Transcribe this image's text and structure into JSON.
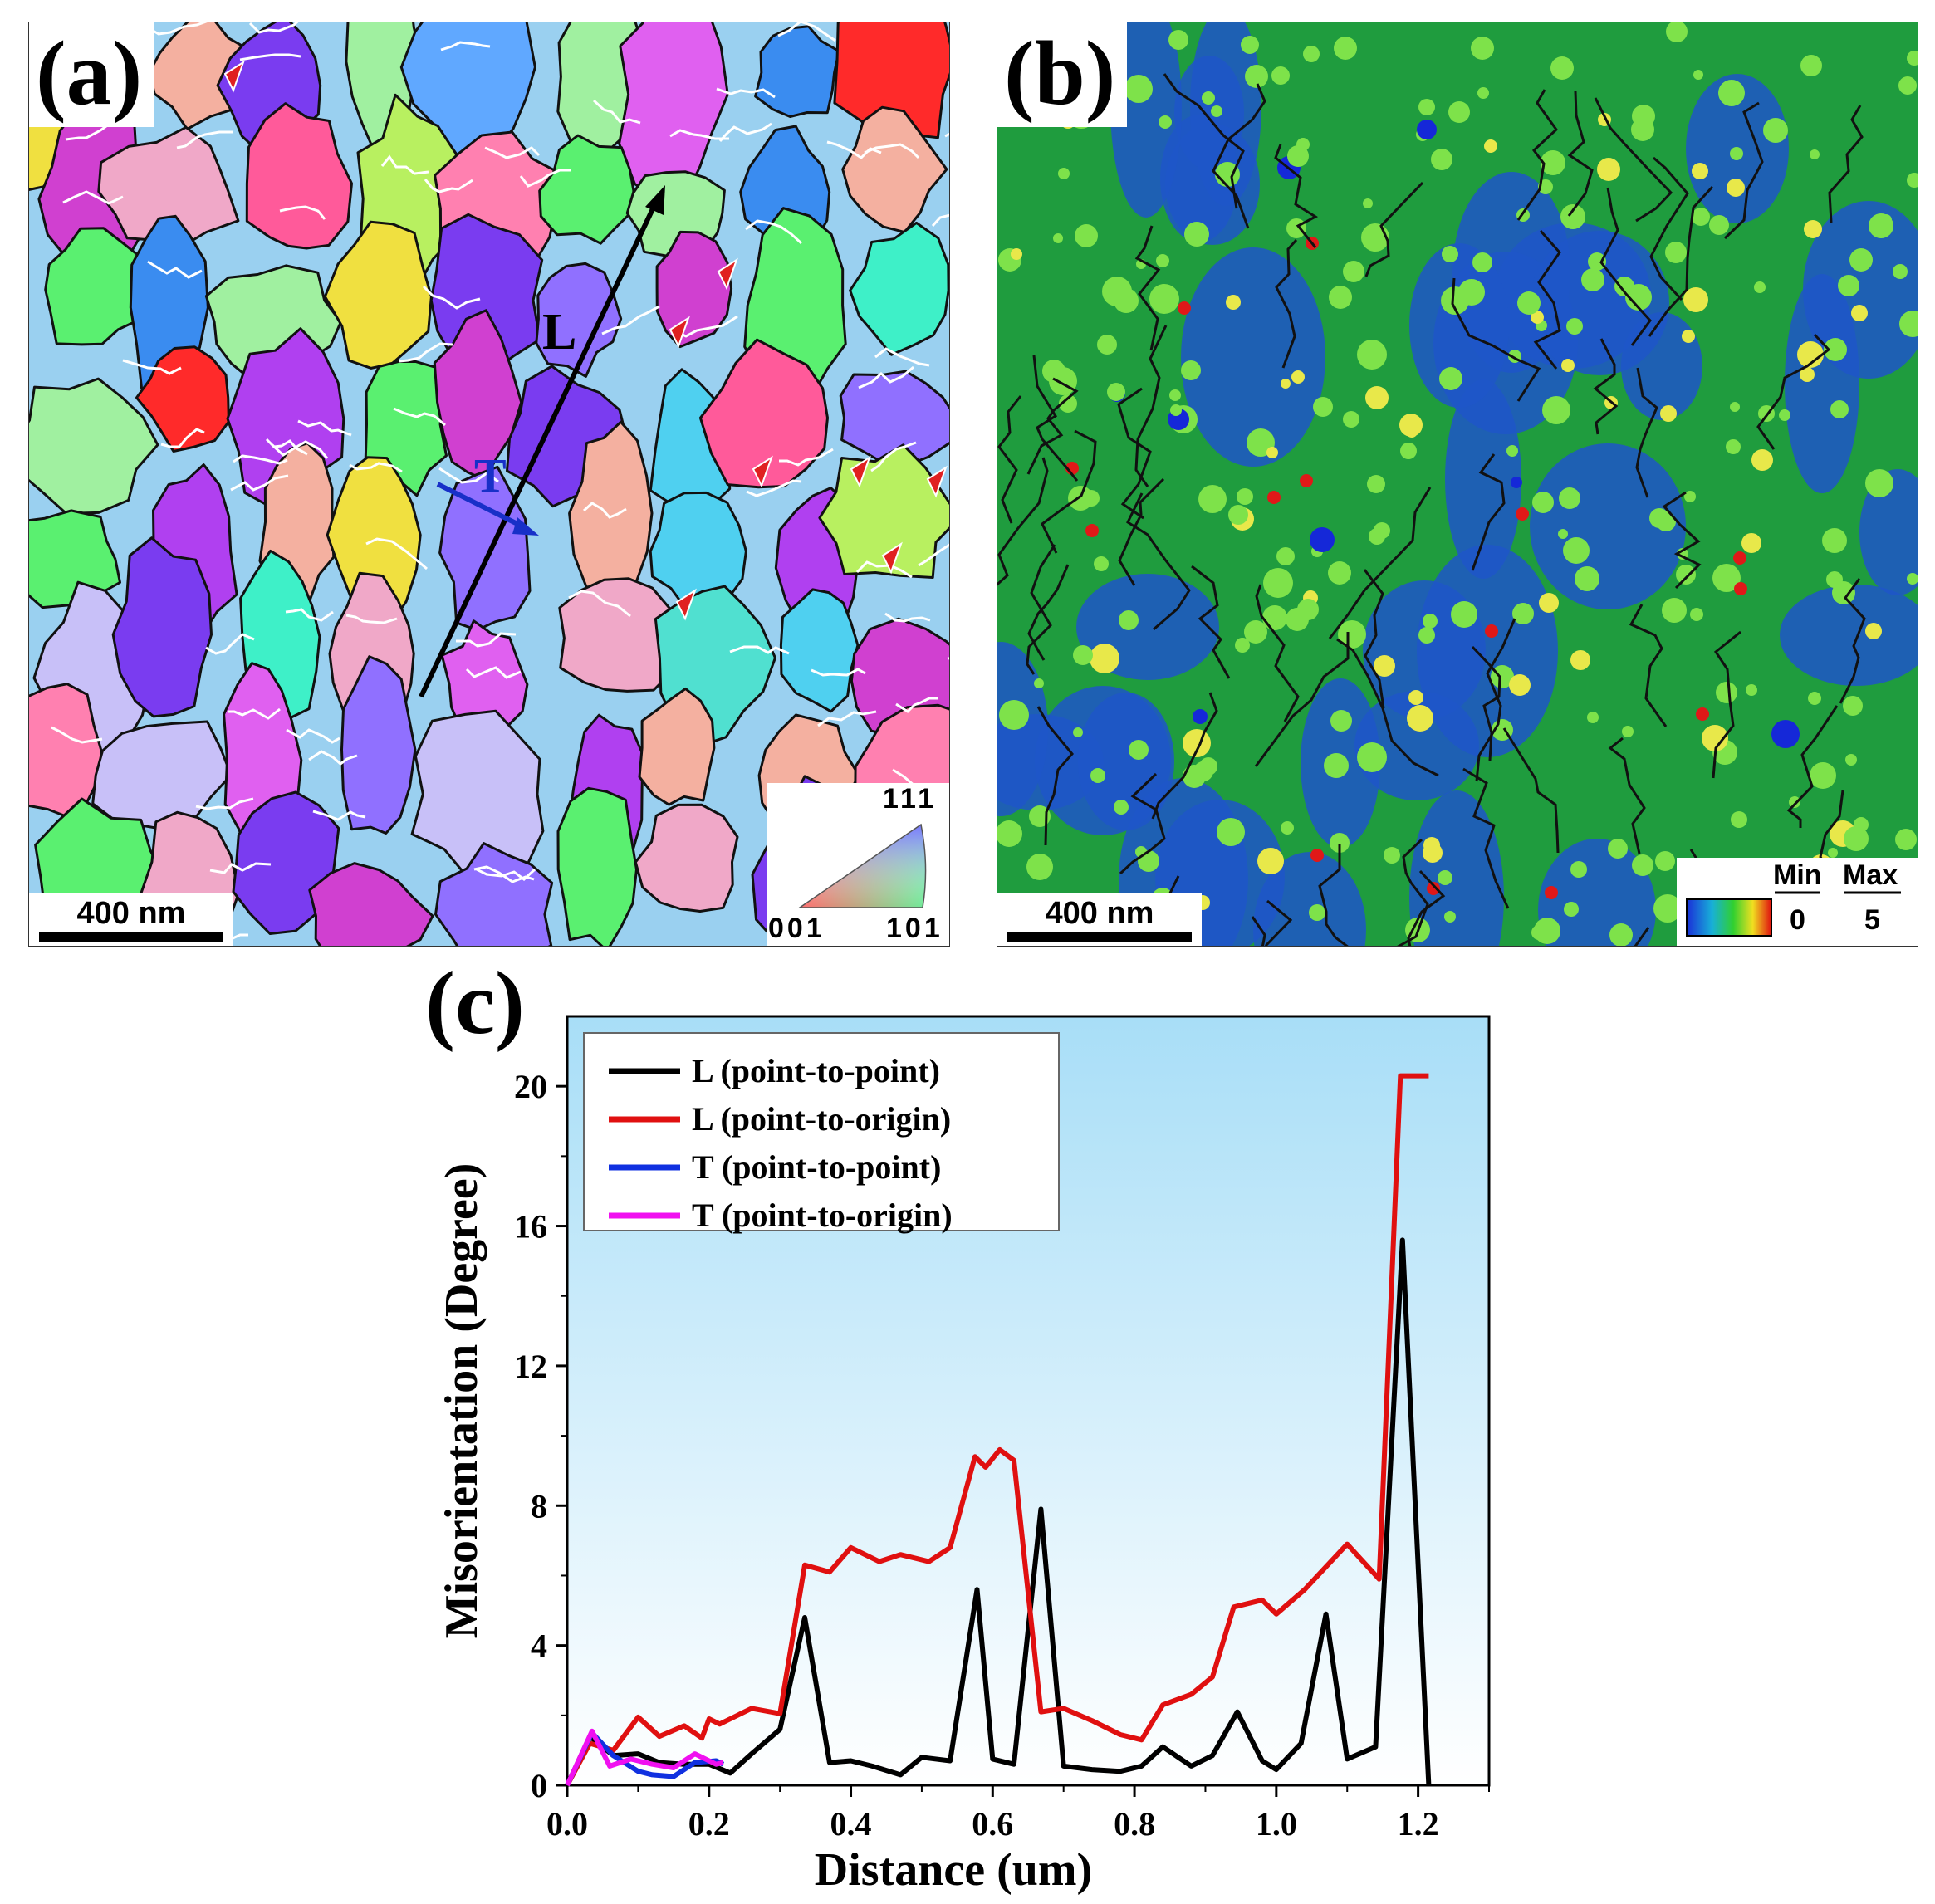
{
  "panel_a": {
    "label": "(a)",
    "scale_bar": "400 nm",
    "line_labels": {
      "longitudinal": "L",
      "transverse": "T"
    },
    "ipf_key": {
      "top": "111",
      "left": "001",
      "right": "101"
    },
    "colors": {
      "L_arrow": "#000000",
      "T_arrow": "#1830c8",
      "marker_arrow": "#e02020",
      "boundary": "#111111",
      "twin_boundary": "#ffffff"
    }
  },
  "panel_b": {
    "label": "(b)",
    "scale_bar": "400 nm",
    "colorbar": {
      "min_label": "Min",
      "max_label": "Max",
      "min_value": "0",
      "max_value": "5"
    },
    "colors": {
      "low": "#1a3fd0",
      "mid": "#22b040",
      "high": "#e01010"
    }
  },
  "chart_data": {
    "type": "line",
    "label": "(c)",
    "xlabel": "Distance (um)",
    "ylabel": "Misorientation (Degree)",
    "xlim": [
      0.0,
      1.3
    ],
    "ylim": [
      0,
      22
    ],
    "xticks": [
      "0.0",
      "0.2",
      "0.4",
      "0.6",
      "0.8",
      "1.0",
      "1.2"
    ],
    "yticks": [
      "0",
      "4",
      "8",
      "12",
      "16",
      "20"
    ],
    "background_gradient": [
      "#a8def7",
      "#ffffff"
    ],
    "legend_position": "top-left",
    "series": [
      {
        "name": "L (point-to-point)",
        "color": "#000000",
        "x": [
          0.0,
          0.032,
          0.065,
          0.1,
          0.13,
          0.165,
          0.2,
          0.23,
          0.26,
          0.3,
          0.335,
          0.37,
          0.4,
          0.43,
          0.47,
          0.5,
          0.54,
          0.578,
          0.6,
          0.63,
          0.668,
          0.7,
          0.74,
          0.78,
          0.81,
          0.84,
          0.88,
          0.91,
          0.945,
          0.98,
          1.0,
          1.035,
          1.07,
          1.1,
          1.14,
          1.178,
          1.215
        ],
        "y": [
          0.0,
          1.4,
          0.85,
          0.9,
          0.65,
          0.6,
          0.6,
          0.35,
          0.9,
          1.6,
          4.8,
          0.65,
          0.7,
          0.55,
          0.3,
          0.8,
          0.7,
          5.6,
          0.75,
          0.6,
          7.9,
          0.55,
          0.45,
          0.4,
          0.55,
          1.1,
          0.55,
          0.85,
          2.1,
          0.7,
          0.45,
          1.2,
          4.9,
          0.75,
          1.1,
          15.6,
          0.0
        ]
      },
      {
        "name": "L (point-to-origin)",
        "color": "#e01010",
        "x": [
          0.0,
          0.032,
          0.065,
          0.1,
          0.13,
          0.165,
          0.19,
          0.2,
          0.215,
          0.26,
          0.3,
          0.335,
          0.37,
          0.4,
          0.44,
          0.47,
          0.51,
          0.54,
          0.575,
          0.59,
          0.61,
          0.63,
          0.668,
          0.7,
          0.74,
          0.78,
          0.81,
          0.84,
          0.88,
          0.91,
          0.94,
          0.98,
          1.0,
          1.04,
          1.1,
          1.145,
          1.175,
          1.215
        ],
        "y": [
          0.0,
          1.2,
          1.0,
          1.95,
          1.4,
          1.7,
          1.35,
          1.9,
          1.75,
          2.2,
          2.05,
          6.3,
          6.1,
          6.8,
          6.4,
          6.6,
          6.4,
          6.8,
          9.4,
          9.1,
          9.6,
          9.3,
          2.1,
          2.2,
          1.85,
          1.45,
          1.3,
          2.3,
          2.6,
          3.1,
          5.1,
          5.3,
          4.9,
          5.6,
          6.9,
          5.9,
          20.3,
          20.3
        ]
      },
      {
        "name": "T (point-to-point)",
        "color": "#1030e0",
        "x": [
          0.0,
          0.035,
          0.065,
          0.1,
          0.12,
          0.15,
          0.18,
          0.21,
          0.22
        ],
        "y": [
          0.0,
          1.5,
          0.85,
          0.4,
          0.3,
          0.25,
          0.65,
          0.7,
          0.6
        ]
      },
      {
        "name": "T (point-to-origin)",
        "color": "#f010f0",
        "x": [
          0.0,
          0.035,
          0.06,
          0.09,
          0.12,
          0.15,
          0.18,
          0.21,
          0.22
        ],
        "y": [
          0.0,
          1.55,
          0.55,
          0.75,
          0.6,
          0.5,
          0.9,
          0.6,
          0.65
        ]
      }
    ]
  }
}
